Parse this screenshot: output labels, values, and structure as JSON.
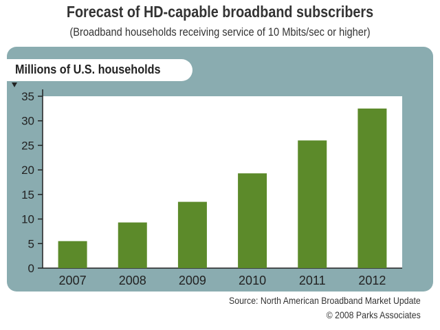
{
  "header": {
    "title": "Forecast of HD-capable broadband subscribers",
    "subtitle": "(Broadband households receiving service of 10 Mbits/sec or higher)"
  },
  "chart_data": {
    "type": "bar",
    "title": "Forecast of HD-capable broadband subscribers",
    "subtitle": "(Broadband households receiving service of 10 Mbits/sec or higher)",
    "xlabel": "",
    "ylabel": "Millions of U.S. households",
    "categories": [
      "2007",
      "2008",
      "2009",
      "2010",
      "2011",
      "2012"
    ],
    "values": [
      5.5,
      9.3,
      13.5,
      19.3,
      26.0,
      32.5
    ],
    "ylim": [
      0,
      35
    ],
    "yticks": [
      0,
      5,
      10,
      15,
      20,
      25,
      30,
      35
    ],
    "grid": false,
    "bar_color": "#5c8a2a",
    "panel_color": "#8aacb0",
    "plot_background": "#ffffff"
  },
  "footer": {
    "source": "Source: North American Broadband Market Update",
    "copyright": "© 2008 Parks Associates"
  }
}
